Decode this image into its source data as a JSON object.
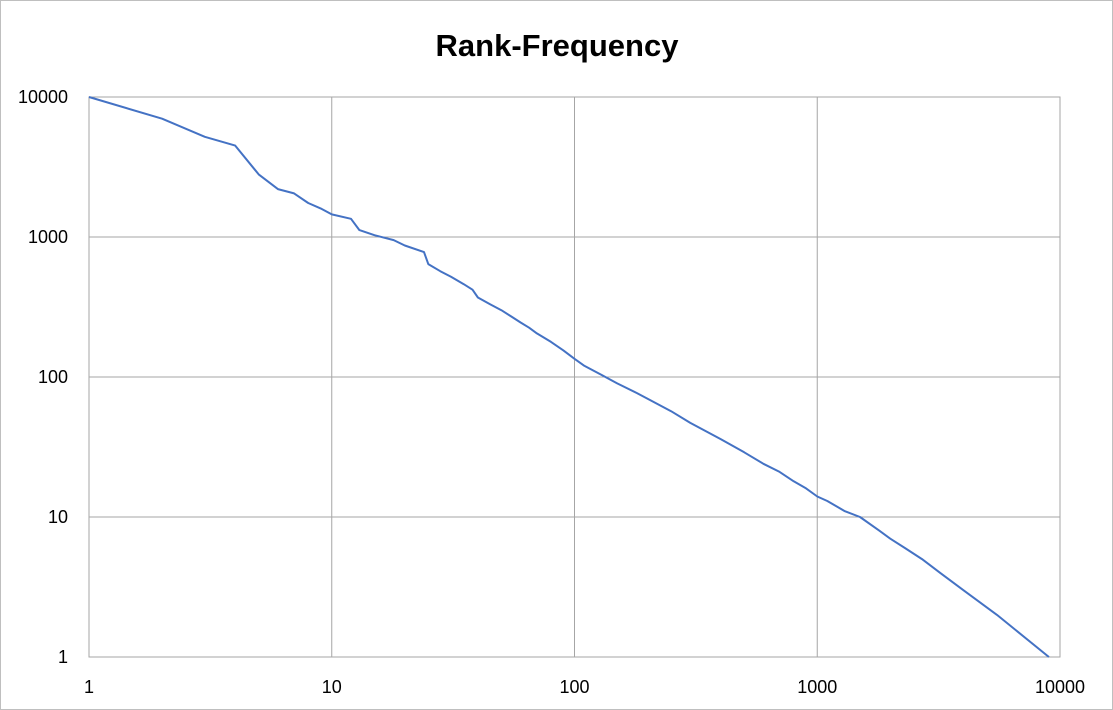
{
  "chart_data": {
    "type": "line",
    "title": "Rank-Frequency",
    "xlabel": "",
    "ylabel": "",
    "x_scale": "log",
    "y_scale": "log",
    "xlim": [
      1,
      10000
    ],
    "ylim": [
      1,
      10000
    ],
    "x_ticks": [
      "1",
      "10",
      "100",
      "1000",
      "10000"
    ],
    "y_ticks": [
      "10000",
      "1000",
      "100",
      "10",
      "1"
    ],
    "grid": true,
    "legend": "none",
    "line_color": "#4472c4",
    "grid_color": "#a6a6a6",
    "series": [
      {
        "x": [
          1,
          2,
          3,
          4,
          5,
          6,
          7,
          8,
          9,
          10,
          12,
          13,
          15,
          18,
          20,
          24,
          25,
          28,
          31,
          35,
          38,
          40,
          45,
          50,
          55,
          60,
          65,
          70,
          80,
          90,
          100,
          110,
          130,
          150,
          180,
          200,
          250,
          300,
          400,
          500,
          600,
          700,
          800,
          900,
          1000,
          1100,
          1300,
          1500,
          1800,
          2000,
          2300,
          2700,
          3200,
          4000,
          5500,
          9000
        ],
        "y": [
          10000,
          7000,
          5200,
          4500,
          2800,
          2200,
          2050,
          1750,
          1600,
          1450,
          1350,
          1120,
          1030,
          950,
          870,
          780,
          640,
          570,
          520,
          460,
          420,
          370,
          330,
          300,
          270,
          245,
          225,
          205,
          178,
          155,
          135,
          120,
          103,
          90,
          77,
          70,
          57,
          47,
          36,
          29,
          24,
          21,
          18,
          16,
          14,
          13,
          11,
          10,
          8,
          7,
          6,
          5,
          4,
          3,
          2,
          1
        ]
      }
    ]
  }
}
